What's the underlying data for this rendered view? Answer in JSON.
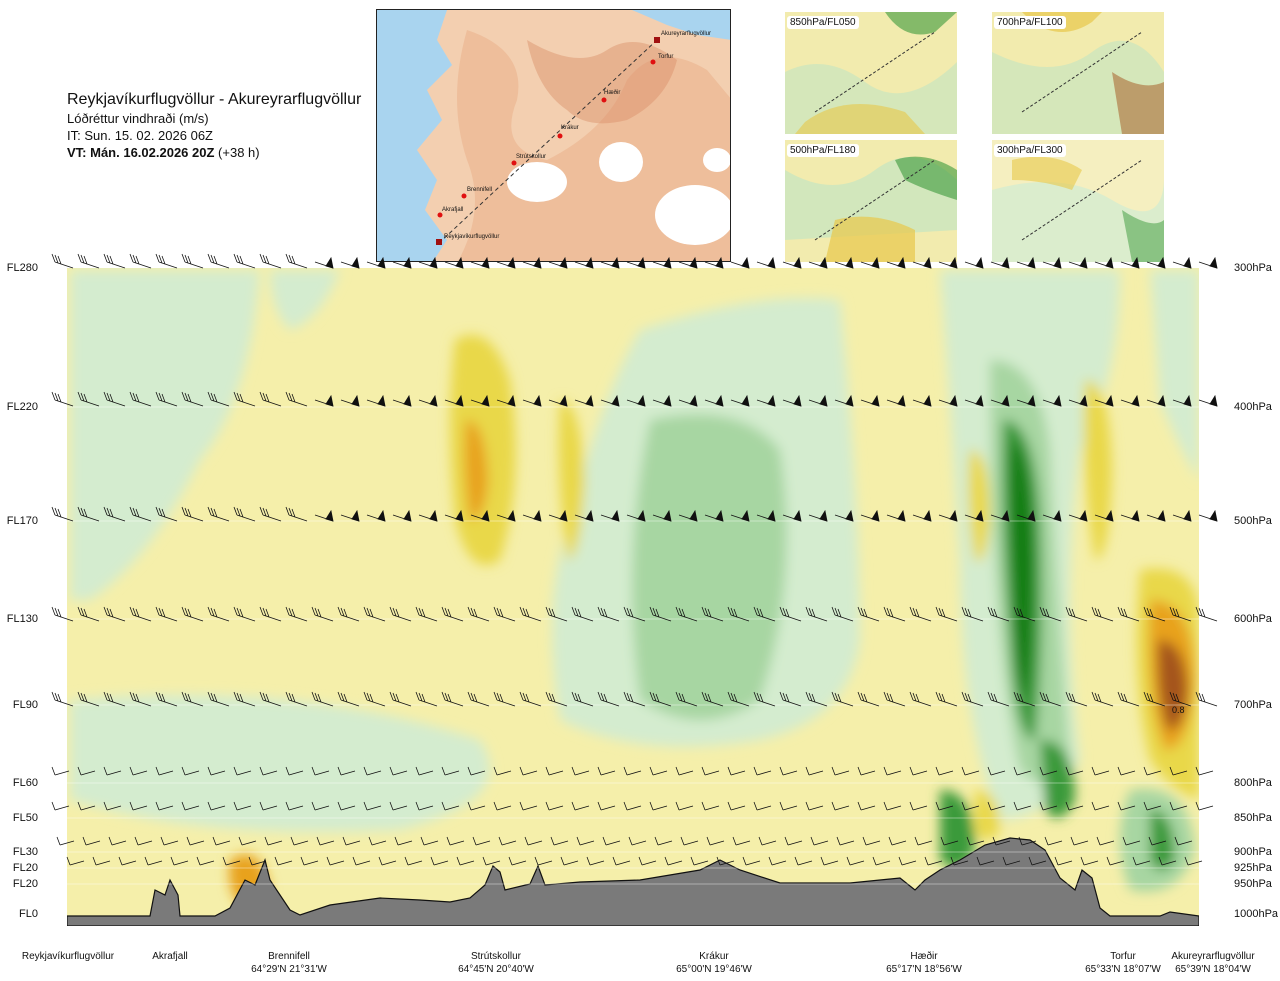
{
  "header": {
    "route": "Reykjavíkurflugvöllur - Akureyrarflugvöllur",
    "param": "Lóðréttur vindhraði (m/s)",
    "it": "IT: Sun. 15. 02. 2026 06Z",
    "vt": "VT: Mán. 16.02.2026 20Z",
    "vt_offset": "(+38 h)"
  },
  "map": {
    "places": [
      "Akureyrarflugvöllur",
      "Torfur",
      "Hæðir",
      "Krákur",
      "Strútskollur",
      "Brennifell",
      "Akrafjall",
      "Reykjavíkurflugvöllur"
    ]
  },
  "thumbnails": [
    "850hPa/FL050",
    "700hPa/FL100",
    "500hPa/FL180",
    "300hPa/FL300"
  ],
  "levels_left": [
    "FL280",
    "FL220",
    "FL170",
    "FL130",
    "FL90",
    "FL60",
    "FL50",
    "FL30",
    "FL20",
    "FL20",
    "FL0"
  ],
  "levels_right": [
    "300hPa",
    "400hPa",
    "500hPa",
    "600hPa",
    "700hPa",
    "800hPa",
    "850hPa",
    "900hPa",
    "925hPa",
    "950hPa",
    "1000hPa"
  ],
  "locations": [
    {
      "name": "Reykjavíkurflugvöllur",
      "coord": ""
    },
    {
      "name": "Akrafjall",
      "coord": ""
    },
    {
      "name": "Brennifell",
      "coord": "64°29'N 21°31'W"
    },
    {
      "name": "Strútskollur",
      "coord": "64°45'N 20°40'W"
    },
    {
      "name": "Krákur",
      "coord": "65°00'N 19°46'W"
    },
    {
      "name": "Hæðir",
      "coord": "65°17'N 18°56'W"
    },
    {
      "name": "Torfur",
      "coord": "65°33'N 18°07'W"
    },
    {
      "name": "Akureyrarflugvöllur",
      "coord": "65°39'N 18°04'W"
    }
  ],
  "annotation": "0.8",
  "colors": {
    "sink_light": "#f5efaa",
    "sink_mid": "#e9d84a",
    "sink_strong": "#e8a21a",
    "sink_extreme": "#a4541c",
    "rise_light": "#d4eccf",
    "rise_mid": "#a7d6a2",
    "rise_strong": "#3a9a3a",
    "rise_extreme": "#0a7a0a",
    "terrain": "#7a7a7a",
    "sea": "#a9d4ef",
    "land": "#f2c6a2"
  },
  "chart_data": {
    "type": "heatmap",
    "title": "Reykjavíkurflugvöllur - Akureyrarflugvöllur",
    "subtitle": "Lóðréttur vindhraði (m/s)",
    "x_categories": [
      "Reykjavíkurflugvöllur",
      "Akrafjall",
      "Brennifell",
      "Strútskollur",
      "Krákur",
      "Hæðir",
      "Torfur",
      "Akureyrarflugvöllur"
    ],
    "y_levels_hPa": [
      300,
      400,
      500,
      600,
      700,
      800,
      850,
      900,
      925,
      950,
      1000
    ],
    "y_levels_FL": [
      "FL280",
      "FL220",
      "FL170",
      "FL130",
      "FL90",
      "FL60",
      "FL50",
      "FL30",
      "FL20",
      "FL20",
      "FL0"
    ],
    "max_value_label": 0.8,
    "grid": true
  }
}
